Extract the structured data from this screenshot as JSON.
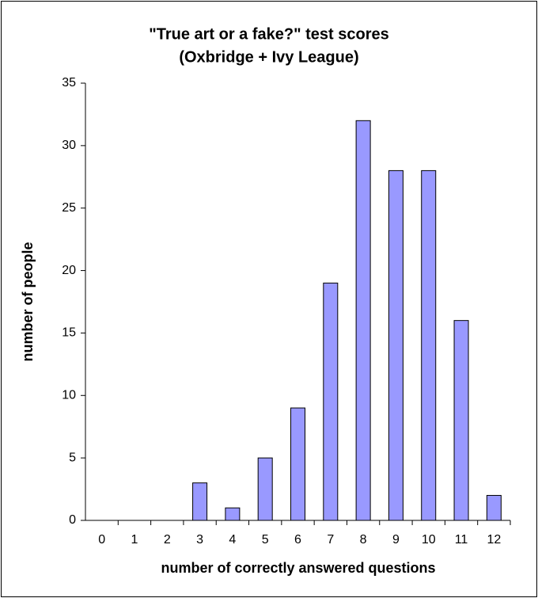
{
  "chart_data": {
    "type": "bar",
    "title": "\"True art or a fake?\" test scores",
    "subtitle": "(Oxbridge + Ivy League)",
    "x_label": "number of correctly answered questions",
    "y_label": "number of people",
    "categories": [
      "0",
      "1",
      "2",
      "3",
      "4",
      "5",
      "6",
      "7",
      "8",
      "9",
      "10",
      "11",
      "12"
    ],
    "values": [
      0,
      0,
      0,
      3,
      1,
      5,
      9,
      19,
      32,
      28,
      28,
      16,
      2
    ],
    "color": "#9999ff",
    "ylim": [
      0,
      35
    ],
    "yticks": [
      0,
      5,
      10,
      15,
      20,
      25,
      30,
      35
    ],
    "grid": false
  }
}
